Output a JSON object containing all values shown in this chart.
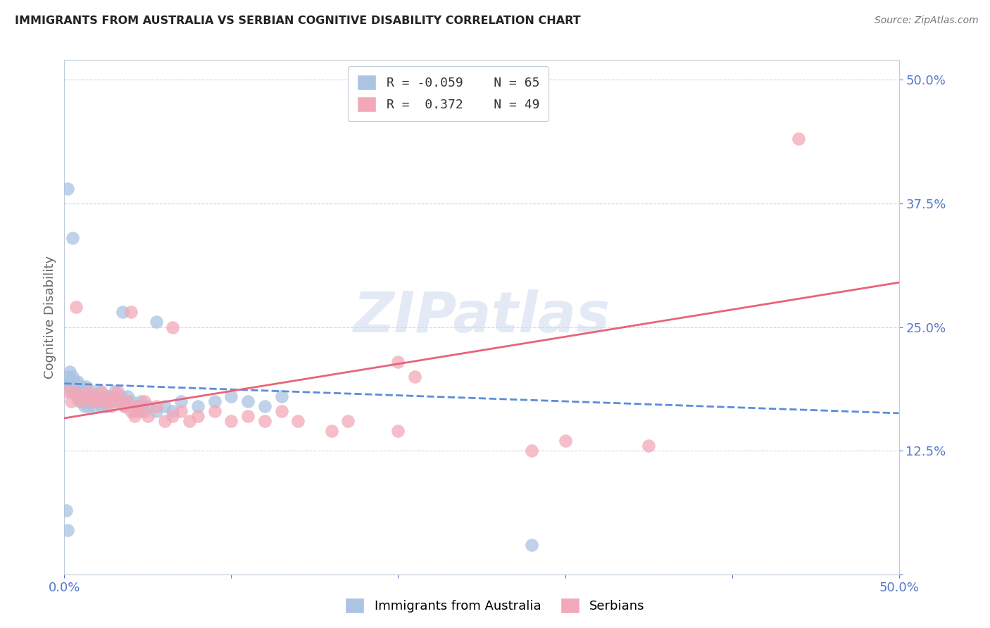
{
  "title": "IMMIGRANTS FROM AUSTRALIA VS SERBIAN COGNITIVE DISABILITY CORRELATION CHART",
  "source": "Source: ZipAtlas.com",
  "ylabel": "Cognitive Disability",
  "xlim": [
    0.0,
    0.5
  ],
  "ylim": [
    0.0,
    0.52
  ],
  "yticks": [
    0.0,
    0.125,
    0.25,
    0.375,
    0.5
  ],
  "ytick_labels": [
    "",
    "12.5%",
    "25.0%",
    "37.5%",
    "50.0%"
  ],
  "xticks": [
    0.0,
    0.1,
    0.2,
    0.3,
    0.4,
    0.5
  ],
  "xtick_labels": [
    "0.0%",
    "",
    "",
    "",
    "",
    "50.0%"
  ],
  "legend_r1": "R = -0.059",
  "legend_n1": "N = 65",
  "legend_r2": "R =  0.372",
  "legend_n2": "N = 49",
  "blue_color": "#aac4e2",
  "pink_color": "#f2a8b8",
  "blue_line_color": "#5b8dd9",
  "pink_line_color": "#e8637a",
  "tick_label_color": "#5577cc",
  "title_color": "#222222",
  "blue_scatter": [
    [
      0.001,
      0.195
    ],
    [
      0.002,
      0.2
    ],
    [
      0.003,
      0.19
    ],
    [
      0.003,
      0.205
    ],
    [
      0.004,
      0.185
    ],
    [
      0.004,
      0.195
    ],
    [
      0.005,
      0.19
    ],
    [
      0.005,
      0.2
    ],
    [
      0.006,
      0.185
    ],
    [
      0.006,
      0.195
    ],
    [
      0.007,
      0.18
    ],
    [
      0.007,
      0.19
    ],
    [
      0.008,
      0.185
    ],
    [
      0.008,
      0.195
    ],
    [
      0.009,
      0.175
    ],
    [
      0.009,
      0.185
    ],
    [
      0.01,
      0.18
    ],
    [
      0.01,
      0.19
    ],
    [
      0.011,
      0.175
    ],
    [
      0.011,
      0.185
    ],
    [
      0.012,
      0.17
    ],
    [
      0.012,
      0.18
    ],
    [
      0.013,
      0.175
    ],
    [
      0.013,
      0.19
    ],
    [
      0.014,
      0.17
    ],
    [
      0.015,
      0.18
    ],
    [
      0.016,
      0.175
    ],
    [
      0.017,
      0.185
    ],
    [
      0.018,
      0.17
    ],
    [
      0.019,
      0.18
    ],
    [
      0.02,
      0.175
    ],
    [
      0.021,
      0.185
    ],
    [
      0.022,
      0.17
    ],
    [
      0.023,
      0.18
    ],
    [
      0.025,
      0.17
    ],
    [
      0.026,
      0.18
    ],
    [
      0.028,
      0.175
    ],
    [
      0.03,
      0.185
    ],
    [
      0.032,
      0.175
    ],
    [
      0.034,
      0.18
    ],
    [
      0.036,
      0.17
    ],
    [
      0.038,
      0.18
    ],
    [
      0.04,
      0.175
    ],
    [
      0.042,
      0.165
    ],
    [
      0.044,
      0.17
    ],
    [
      0.046,
      0.175
    ],
    [
      0.048,
      0.165
    ],
    [
      0.05,
      0.17
    ],
    [
      0.055,
      0.165
    ],
    [
      0.06,
      0.17
    ],
    [
      0.065,
      0.165
    ],
    [
      0.07,
      0.175
    ],
    [
      0.08,
      0.17
    ],
    [
      0.09,
      0.175
    ],
    [
      0.1,
      0.18
    ],
    [
      0.11,
      0.175
    ],
    [
      0.12,
      0.17
    ],
    [
      0.13,
      0.18
    ],
    [
      0.002,
      0.39
    ],
    [
      0.005,
      0.34
    ],
    [
      0.035,
      0.265
    ],
    [
      0.055,
      0.255
    ],
    [
      0.28,
      0.03
    ],
    [
      0.001,
      0.065
    ],
    [
      0.002,
      0.045
    ]
  ],
  "pink_scatter": [
    [
      0.002,
      0.185
    ],
    [
      0.004,
      0.175
    ],
    [
      0.006,
      0.185
    ],
    [
      0.008,
      0.18
    ],
    [
      0.01,
      0.175
    ],
    [
      0.012,
      0.18
    ],
    [
      0.014,
      0.185
    ],
    [
      0.016,
      0.175
    ],
    [
      0.018,
      0.18
    ],
    [
      0.02,
      0.175
    ],
    [
      0.022,
      0.185
    ],
    [
      0.024,
      0.175
    ],
    [
      0.026,
      0.18
    ],
    [
      0.028,
      0.17
    ],
    [
      0.03,
      0.18
    ],
    [
      0.032,
      0.185
    ],
    [
      0.034,
      0.175
    ],
    [
      0.036,
      0.17
    ],
    [
      0.038,
      0.175
    ],
    [
      0.04,
      0.165
    ],
    [
      0.042,
      0.16
    ],
    [
      0.044,
      0.17
    ],
    [
      0.046,
      0.165
    ],
    [
      0.048,
      0.175
    ],
    [
      0.05,
      0.16
    ],
    [
      0.055,
      0.17
    ],
    [
      0.06,
      0.155
    ],
    [
      0.065,
      0.16
    ],
    [
      0.07,
      0.165
    ],
    [
      0.075,
      0.155
    ],
    [
      0.08,
      0.16
    ],
    [
      0.09,
      0.165
    ],
    [
      0.1,
      0.155
    ],
    [
      0.11,
      0.16
    ],
    [
      0.12,
      0.155
    ],
    [
      0.13,
      0.165
    ],
    [
      0.14,
      0.155
    ],
    [
      0.16,
      0.145
    ],
    [
      0.17,
      0.155
    ],
    [
      0.2,
      0.145
    ],
    [
      0.21,
      0.2
    ],
    [
      0.28,
      0.125
    ],
    [
      0.3,
      0.135
    ],
    [
      0.35,
      0.13
    ],
    [
      0.2,
      0.215
    ],
    [
      0.44,
      0.44
    ],
    [
      0.007,
      0.27
    ],
    [
      0.04,
      0.265
    ],
    [
      0.065,
      0.25
    ]
  ],
  "blue_line": {
    "x0": 0.0,
    "x1": 0.5,
    "y0": 0.193,
    "y1": 0.163
  },
  "pink_line": {
    "x0": 0.0,
    "x1": 0.5,
    "y0": 0.158,
    "y1": 0.295
  },
  "grid_color": "#d0d8e8",
  "spine_color": "#c0ccd8"
}
